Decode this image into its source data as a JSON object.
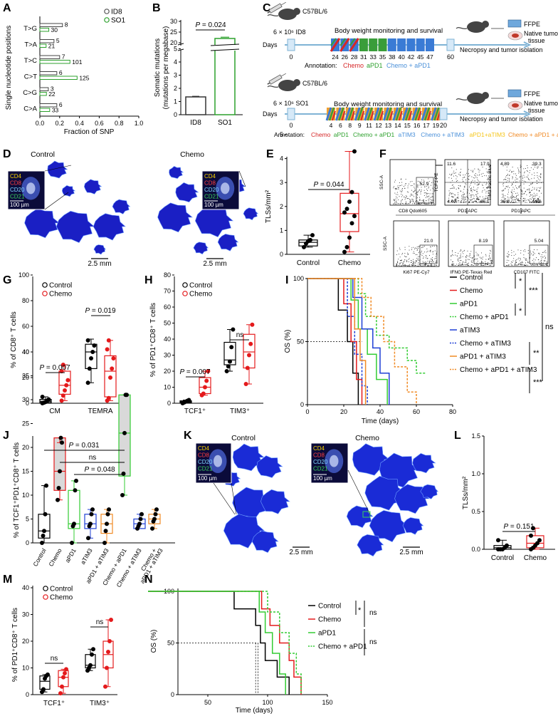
{
  "panels": {
    "A": {
      "letter": "A",
      "ylabel": "Single nucleotide positions",
      "xlabel": "Fraction of SNP",
      "xticks": [
        "0.0",
        "0.2",
        "0.4",
        "0.6",
        "0.8",
        "1.0"
      ],
      "legend": [
        "ID8",
        "SO1"
      ],
      "categories": [
        {
          "name": "T>G",
          "id8": 8,
          "so1": 30
        },
        {
          "name": "T>A",
          "id8": 5,
          "so1": 21
        },
        {
          "name": "T>C",
          "id8": 7,
          "so1": 101
        },
        {
          "name": "C>T",
          "id8": 6,
          "so1": 125
        },
        {
          "name": "C>G",
          "id8": 3,
          "so1": 22
        },
        {
          "name": "C>A",
          "id8": 6,
          "so1": 33
        }
      ]
    },
    "B": {
      "letter": "B",
      "ylabel1": "Somatic mutations",
      "ylabel2": "(mutations per megabase)",
      "pvalue": "P = 0.024",
      "yticks_top": [
        "20",
        "25",
        "30"
      ],
      "yticks_bottom": [
        "0",
        "1",
        "2",
        "3",
        "4",
        "5"
      ],
      "categories": [
        "ID8",
        "SO1"
      ]
    },
    "C": {
      "letter": "C",
      "mouse": "C57BL/6",
      "ffpe": "FFPE",
      "native1": "Native tumor",
      "native2": "tissue",
      "necropsy": "Necropsy and tumor isolation",
      "body_weight": "Body weight monitoring and survival",
      "days": "Days",
      "annotation": "Annotation:",
      "top": {
        "inject": "6 × 10⁶ ID8",
        "days": [
          "0",
          "24",
          "26",
          "28",
          "31",
          "33",
          "35",
          "38",
          "40",
          "42",
          "45",
          "47",
          "60"
        ],
        "legend": [
          {
            "text": "Chemo",
            "color": "#d62728"
          },
          {
            "text": "aPD1",
            "color": "#2ca02c"
          },
          {
            "text": "Chemo + aPD1",
            "color": "#4a90d9"
          }
        ]
      },
      "bottom": {
        "inject": "6 × 10⁶ SO1",
        "days": [
          "0",
          "4",
          "6",
          "8",
          "9",
          "11",
          "12",
          "13",
          "14",
          "15",
          "16",
          "17",
          "19",
          "20"
        ],
        "legend": [
          {
            "text": "Chemo",
            "color": "#d62728"
          },
          {
            "text": "aPD1",
            "color": "#2ca02c"
          },
          {
            "text": "Chemo + aPD1",
            "color": "#2ca02c"
          },
          {
            "text": "aTIM3",
            "color": "#4a90d9"
          },
          {
            "text": "Chemo + aTIM3",
            "color": "#4a90d9"
          },
          {
            "text": "aPD1+aTIM3",
            "color": "#f5c518"
          },
          {
            "text": "Chemo + aPD1 + aTIM3",
            "color": "#f08a24"
          }
        ]
      }
    },
    "D": {
      "letter": "D",
      "control": "Control",
      "chemo": "Chemo",
      "scale": "2.5 mm",
      "stains": [
        "CD4",
        "CD8",
        "CD20",
        "CD21"
      ],
      "scalebar": "100 µm"
    },
    "E": {
      "letter": "E",
      "ylabel": "TLSs/mm²",
      "pvalue": "P = 0.044",
      "yticks": [
        "0",
        "1",
        "2",
        "3",
        "4",
        "5"
      ],
      "groups": [
        "Control",
        "Chemo"
      ],
      "control_points": [
        0.3,
        0.45,
        0.55,
        0.6,
        0.8
      ],
      "chemo_points": [
        0.1,
        0.3,
        0.7,
        1.3,
        1.6,
        1.75,
        1.9,
        2.2,
        2.6,
        4.3
      ]
    },
    "F": {
      "letter": "F",
      "p1_x": "CD8 Qdot605",
      "p1_y": "SSC-A",
      "p1_v": "52.9",
      "p2_x": "PD1 APC",
      "p2_y": "TCF1-PE",
      "p2_q": [
        "11.6",
        "17.9",
        "4.40",
        "66.1"
      ],
      "p3_x": "PD1 APC",
      "p3_y": "TIM3 Pacific Blue",
      "p3_q": [
        "4.89",
        "39.3",
        "36.0",
        "19.8"
      ],
      "p4_x": "Ki67 PE-Cy7",
      "p4_y": "SSC-A",
      "p4_v": "21.0",
      "p5_x": "IFNG PE-Texas Red",
      "p5_v": "8.19",
      "p6_x": "CD107 FITC",
      "p6_v": "5.04"
    },
    "G": {
      "letter": "G",
      "ylabel": "% of CD8⁺ T cells",
      "legend": [
        "Control",
        "Chemo"
      ],
      "yticks": [
        "0",
        "20",
        "40",
        "60",
        "80",
        "100"
      ],
      "groups": [
        "CM",
        "TEMRA"
      ],
      "p1": "P = 0.007",
      "p2": "P = 0.019"
    },
    "H": {
      "letter": "H",
      "ylabel": "% of PD1⁺CD8⁺ T cells",
      "legend": [
        "Control",
        "Chemo"
      ],
      "yticks": [
        "0",
        "10",
        "20",
        "30",
        "40",
        "50",
        "60",
        "70",
        "80"
      ],
      "groups": [
        "TCF1⁺",
        "TIM3⁺"
      ],
      "p1": "P = 0.007",
      "p2": "ns"
    },
    "I": {
      "letter": "I",
      "ylabel": "OS (%)",
      "xlabel": "Time (days)",
      "xticks": [
        "0",
        "20",
        "40",
        "60",
        "80"
      ],
      "yticks": [
        "0",
        "50",
        "100"
      ],
      "legend": [
        {
          "text": "Control",
          "color": "#000000"
        },
        {
          "text": "Chemo",
          "color": "#e41a1c"
        },
        {
          "text": "aPD1",
          "color": "#33cc33"
        },
        {
          "text": "Chemo + aPD1",
          "color": "#33cc33"
        },
        {
          "text": "aTIM3",
          "color": "#1f3fd6"
        },
        {
          "text": "Chemo + aTIM3",
          "color": "#1f3fd6"
        },
        {
          "text": "aPD1 + aTIM3",
          "color": "#f08a24"
        },
        {
          "text": "Chemo + aPD1 + aTIM3",
          "color": "#f08a24"
        }
      ],
      "sig": [
        "*",
        "***",
        "*",
        "ns",
        "**",
        "***"
      ]
    },
    "J": {
      "letter": "J",
      "ylabel": "% of TCF1⁺PD1⁺CD8⁺ T cells",
      "yticks": [
        "0",
        "5",
        "10",
        "15",
        "20",
        "25",
        "30",
        "35",
        "40"
      ],
      "groups": [
        "Control",
        "Chemo",
        "aPD1",
        "aTIM3",
        "aPD1 + aTIM3",
        "Chemo + aPD1",
        "Chemo + aTIM3",
        "Chemo +\naPD1 + aTIM3"
      ],
      "p1": "P = 0.031",
      "p2": "ns",
      "p3": "P = 0.048"
    },
    "K": {
      "letter": "K",
      "control": "Control",
      "chemo": "Chemo",
      "scale": "2.5 mm",
      "stains": [
        "CD4",
        "CD8",
        "CD20",
        "CD21"
      ],
      "scalebar": "100 µm"
    },
    "L": {
      "letter": "L",
      "ylabel": "TLSs/mm²",
      "pvalue": "P = 0.151",
      "yticks": [
        "0.0",
        "0.5",
        "1.0",
        "1.5"
      ],
      "groups": [
        "Control",
        "Chemo"
      ]
    },
    "M": {
      "letter": "M",
      "ylabel": "% of PD1⁺CD8⁺ T cells",
      "legend": [
        "Control",
        "Chemo"
      ],
      "yticks": [
        "0",
        "10",
        "20",
        "30",
        "40"
      ],
      "groups": [
        "TCF1⁺",
        "TIM3⁺"
      ],
      "p1": "ns",
      "p2": "ns"
    },
    "N": {
      "letter": "N",
      "ylabel": "OS (%)",
      "xlabel": "Time (days)",
      "xticks": [
        "50",
        "100",
        "150"
      ],
      "yticks": [
        "0",
        "50",
        "100"
      ],
      "legend": [
        {
          "text": "Control",
          "color": "#000000"
        },
        {
          "text": "Chemo",
          "color": "#e41a1c"
        },
        {
          "text": "aPD1",
          "color": "#33cc33"
        },
        {
          "text": "Chemo + aPD1",
          "color": "#33cc33"
        }
      ],
      "sig": [
        "*",
        "ns",
        "ns"
      ]
    }
  }
}
